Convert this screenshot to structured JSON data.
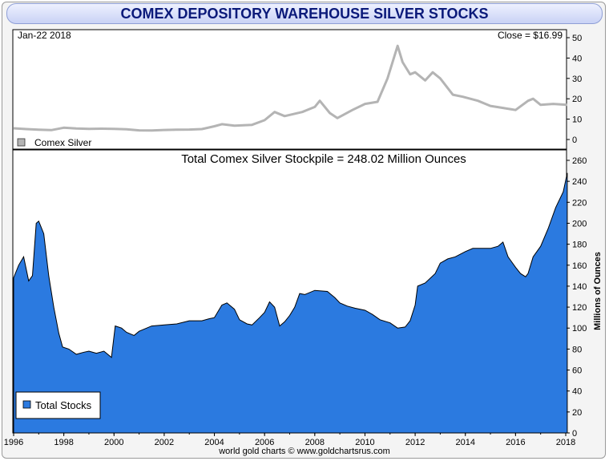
{
  "title": "COMEX DEPOSITORY WAREHOUSE SILVER STOCKS",
  "footer": "world gold charts © www.goldchartsrus.com",
  "colors": {
    "stocks_fill": "#2b7ae0",
    "silver_line": "#b4b4b4",
    "title_text": "#0b1a7a"
  },
  "chart_data": [
    {
      "type": "line",
      "name": "silver-price-panel",
      "date_label": "Jan-22  2018",
      "close_label": "Close = $16.99",
      "legend": "Comex Silver",
      "ylim": [
        0,
        52
      ],
      "yticks": [
        0,
        10,
        20,
        30,
        40,
        50
      ],
      "series": [
        {
          "name": "Comex Silver",
          "x": [
            1996.0,
            1996.5,
            1997.0,
            1997.5,
            1998.0,
            1998.5,
            1999.0,
            1999.5,
            2000.0,
            2000.5,
            2001.0,
            2001.5,
            2002.0,
            2002.5,
            2003.0,
            2003.5,
            2004.0,
            2004.3,
            2004.8,
            2005.5,
            2006.0,
            2006.4,
            2006.8,
            2007.5,
            2008.0,
            2008.2,
            2008.6,
            2008.9,
            2009.5,
            2010.0,
            2010.5,
            2010.9,
            2011.3,
            2011.5,
            2011.8,
            2012.0,
            2012.4,
            2012.7,
            2013.0,
            2013.5,
            2013.9,
            2014.5,
            2015.0,
            2015.5,
            2016.0,
            2016.5,
            2016.7,
            2017.0,
            2017.5,
            2018.06
          ],
          "values": [
            5.5,
            5.1,
            4.8,
            4.6,
            5.8,
            5.4,
            5.2,
            5.3,
            5.2,
            5.0,
            4.5,
            4.4,
            4.7,
            4.8,
            4.9,
            5.1,
            6.5,
            7.5,
            6.8,
            7.2,
            9.5,
            13.5,
            11.5,
            13.5,
            16.0,
            19.0,
            13.0,
            10.5,
            14.5,
            17.5,
            18.5,
            30.0,
            46.0,
            38.0,
            32.0,
            33.0,
            29.0,
            33.0,
            30.0,
            22.0,
            21.0,
            19.0,
            16.5,
            15.5,
            14.5,
            19.0,
            20.0,
            17.0,
            17.5,
            16.99
          ]
        }
      ]
    },
    {
      "type": "area",
      "name": "stocks-panel",
      "title": "Total Comex Silver Stockpile = 248.02 Million Ounces",
      "ylabel": "Millions of Ounces",
      "legend": "Total Stocks",
      "ylim": [
        0,
        265
      ],
      "yticks": [
        0,
        20,
        40,
        60,
        80,
        100,
        120,
        140,
        160,
        180,
        200,
        220,
        240,
        260
      ],
      "xlim": [
        1996,
        2018
      ],
      "xticks": [
        "1996",
        "1998",
        "2000",
        "2002",
        "2004",
        "2006",
        "2008",
        "2010",
        "2012",
        "2014",
        "2016",
        "2018"
      ],
      "series": [
        {
          "name": "Total Stocks",
          "x": [
            1996.0,
            1996.2,
            1996.4,
            1996.6,
            1996.75,
            1996.9,
            1997.0,
            1997.2,
            1997.4,
            1997.6,
            1997.8,
            1997.95,
            1998.2,
            1998.5,
            1998.8,
            1999.0,
            1999.3,
            1999.6,
            1999.9,
            2000.05,
            2000.3,
            2000.5,
            2000.8,
            2001.0,
            2001.5,
            2002.0,
            2002.5,
            2003.0,
            2003.5,
            2003.8,
            2004.0,
            2004.3,
            2004.5,
            2004.8,
            2005.0,
            2005.3,
            2005.5,
            2005.8,
            2006.0,
            2006.2,
            2006.4,
            2006.6,
            2006.8,
            2007.0,
            2007.2,
            2007.4,
            2007.6,
            2008.0,
            2008.5,
            2008.8,
            2009.0,
            2009.3,
            2009.6,
            2010.0,
            2010.3,
            2010.6,
            2011.0,
            2011.3,
            2011.6,
            2011.8,
            2012.0,
            2012.1,
            2012.4,
            2012.8,
            2013.0,
            2013.3,
            2013.6,
            2014.0,
            2014.3,
            2014.7,
            2015.0,
            2015.3,
            2015.5,
            2015.7,
            2016.0,
            2016.2,
            2016.4,
            2016.5,
            2016.7,
            2017.0,
            2017.3,
            2017.6,
            2017.9,
            2018.06
          ],
          "values": [
            148,
            160,
            168,
            145,
            150,
            200,
            202,
            190,
            150,
            120,
            95,
            82,
            80,
            75,
            77,
            78,
            76,
            78,
            72,
            102,
            100,
            96,
            93,
            97,
            102,
            103,
            104,
            107,
            107,
            109,
            110,
            122,
            124,
            118,
            108,
            104,
            103,
            110,
            115,
            125,
            120,
            102,
            106,
            112,
            120,
            133,
            132,
            136,
            135,
            129,
            124,
            121,
            119,
            117,
            113,
            108,
            105,
            100,
            101,
            107,
            122,
            140,
            143,
            152,
            162,
            166,
            168,
            173,
            176,
            176,
            176,
            178,
            182,
            168,
            158,
            152,
            149,
            152,
            168,
            178,
            195,
            215,
            230,
            248.02
          ]
        }
      ]
    }
  ]
}
